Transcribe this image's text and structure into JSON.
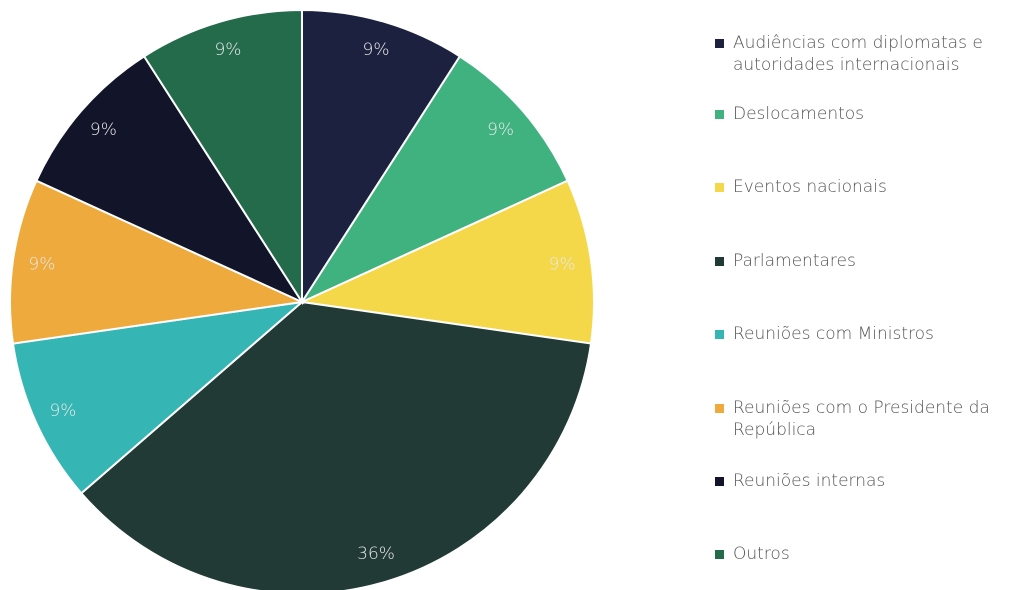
{
  "chart_data": {
    "type": "pie",
    "categories": [
      "Audiências com diplomatas e autoridades internacionais",
      "Deslocamentos",
      "Eventos nacionais",
      "Parlamentares",
      "Reuniões com Ministros",
      "Reuniões com o Presidente da República",
      "Reuniões internas",
      "Outros"
    ],
    "values": [
      9,
      9,
      9,
      36,
      9,
      9,
      9,
      9
    ],
    "value_labels": [
      "9%",
      "9%",
      "9%",
      "36%",
      "9%",
      "9%",
      "9%",
      "9%"
    ],
    "colors": [
      "#1c2140",
      "#3fb27f",
      "#f4d84a",
      "#213a36",
      "#35b5b3",
      "#eeaa3c",
      "#12142a",
      "#236b4b"
    ],
    "legend": "right"
  }
}
